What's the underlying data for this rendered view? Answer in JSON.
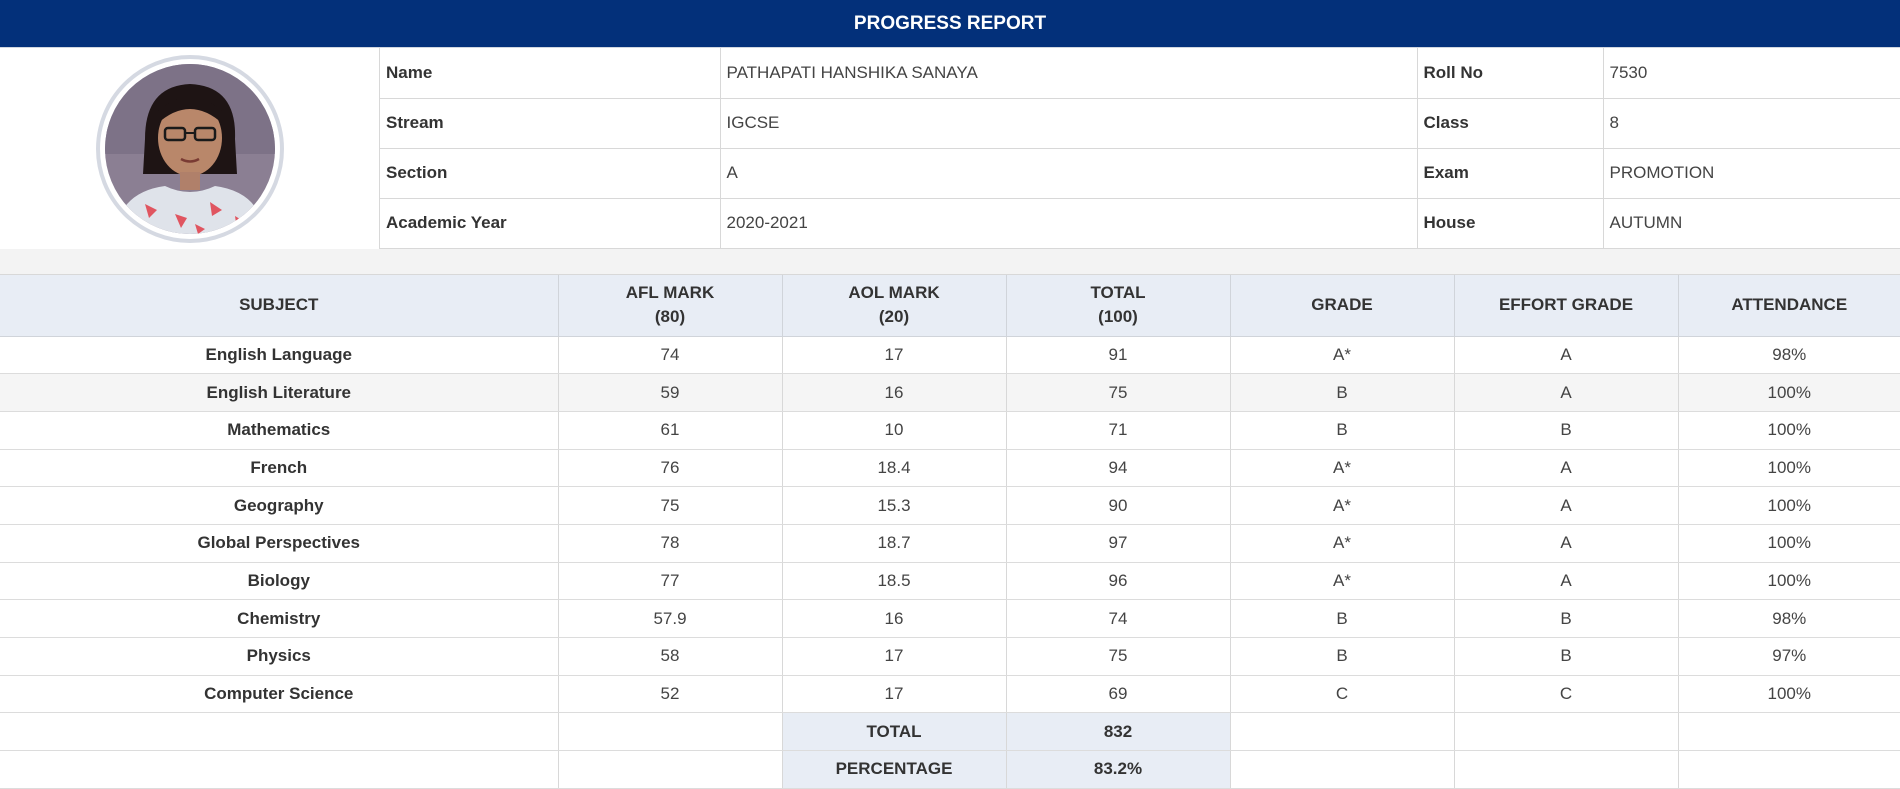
{
  "header": {
    "title": "PROGRESS REPORT"
  },
  "student": {
    "avatar_icon": "student-photo",
    "fields": [
      {
        "label": "Name",
        "value": "PATHAPATI HANSHIKA SANAYA",
        "label2": "Roll No",
        "value2": "7530"
      },
      {
        "label": "Stream",
        "value": "IGCSE",
        "label2": "Class",
        "value2": "8"
      },
      {
        "label": "Section",
        "value": "A",
        "label2": "Exam",
        "value2": "PROMOTION"
      },
      {
        "label": "Academic Year",
        "value": "2020-2021",
        "label2": "House",
        "value2": "AUTUMN"
      }
    ]
  },
  "marks": {
    "columns": [
      {
        "line1": "SUBJECT",
        "line2": ""
      },
      {
        "line1": "AFL MARK",
        "line2": "(80)"
      },
      {
        "line1": "AOL MARK",
        "line2": "(20)"
      },
      {
        "line1": "TOTAL",
        "line2": "(100)"
      },
      {
        "line1": "GRADE",
        "line2": ""
      },
      {
        "line1": "EFFORT GRADE",
        "line2": ""
      },
      {
        "line1": "ATTENDANCE",
        "line2": ""
      }
    ],
    "rows": [
      {
        "subject": "English Language",
        "afl": "74",
        "aol": "17",
        "total": "91",
        "grade": "A*",
        "effort": "A",
        "attendance": "98%"
      },
      {
        "subject": "English Literature",
        "afl": "59",
        "aol": "16",
        "total": "75",
        "grade": "B",
        "effort": "A",
        "attendance": "100%"
      },
      {
        "subject": "Mathematics",
        "afl": "61",
        "aol": "10",
        "total": "71",
        "grade": "B",
        "effort": "B",
        "attendance": "100%"
      },
      {
        "subject": "French",
        "afl": "76",
        "aol": "18.4",
        "total": "94",
        "grade": "A*",
        "effort": "A",
        "attendance": "100%"
      },
      {
        "subject": "Geography",
        "afl": "75",
        "aol": "15.3",
        "total": "90",
        "grade": "A*",
        "effort": "A",
        "attendance": "100%"
      },
      {
        "subject": "Global Perspectives",
        "afl": "78",
        "aol": "18.7",
        "total": "97",
        "grade": "A*",
        "effort": "A",
        "attendance": "100%"
      },
      {
        "subject": "Biology",
        "afl": "77",
        "aol": "18.5",
        "total": "96",
        "grade": "A*",
        "effort": "A",
        "attendance": "100%"
      },
      {
        "subject": "Chemistry",
        "afl": "57.9",
        "aol": "16",
        "total": "74",
        "grade": "B",
        "effort": "B",
        "attendance": "98%"
      },
      {
        "subject": "Physics",
        "afl": "58",
        "aol": "17",
        "total": "75",
        "grade": "B",
        "effort": "B",
        "attendance": "97%"
      },
      {
        "subject": "Computer Science",
        "afl": "52",
        "aol": "17",
        "total": "69",
        "grade": "C",
        "effort": "C",
        "attendance": "100%"
      }
    ],
    "summary": [
      {
        "label": "TOTAL",
        "value": "832"
      },
      {
        "label": "PERCENTAGE",
        "value": "83.2%"
      }
    ]
  }
}
